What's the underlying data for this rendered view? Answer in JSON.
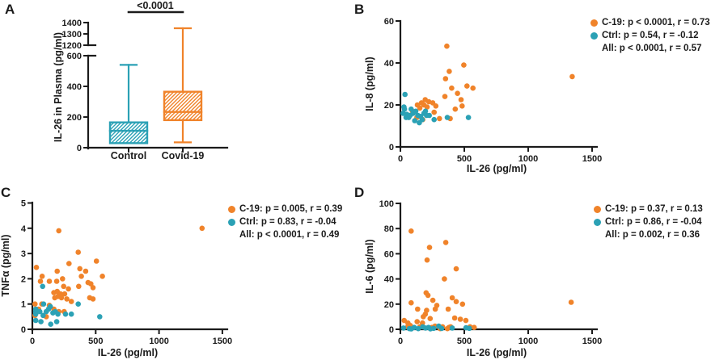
{
  "figure": {
    "background": "#FFFFFF",
    "colors": {
      "covid": "#F0832A",
      "control": "#2BA1B5",
      "axis": "#1B1B1B"
    }
  },
  "chart_data": [
    {
      "panel": "A",
      "type": "box",
      "ylabel": "IL-26 in Plasma (pg/ml)",
      "significance": "<0.0001",
      "categories": [
        "Control",
        "Covid-19"
      ],
      "axis_break": {
        "lower_range": [
          0,
          600
        ],
        "lower_ticks": [
          0,
          200,
          400,
          600
        ],
        "upper_range": [
          1200,
          1400
        ],
        "upper_ticks": [
          1200,
          1300,
          1400
        ]
      },
      "boxes": [
        {
          "name": "Control",
          "color_key": "control",
          "min": 30,
          "q1": 30,
          "median": 110,
          "q3": 165,
          "max": 540
        },
        {
          "name": "Covid-19",
          "color_key": "covid",
          "min": 35,
          "q1": 180,
          "median": 233,
          "q3": 365,
          "max": 1350
        }
      ]
    },
    {
      "panel": "B",
      "type": "scatter",
      "xlabel": "IL-26 (pg/ml)",
      "ylabel": "IL-8 (pg/ml)",
      "xlim": [
        0,
        1500
      ],
      "xticks": [
        0,
        500,
        1000,
        1500
      ],
      "ylim": [
        0,
        60
      ],
      "yticks": [
        0,
        20,
        40,
        60
      ],
      "legend": [
        {
          "color_key": "covid",
          "label": "C-19: p < 0.0001, r = 0.73"
        },
        {
          "color_key": "control",
          "label": "Ctrl: p = 0.54, r = -0.12"
        },
        {
          "color_key": null,
          "label": "All: p < 0.0001, r = 0.57"
        }
      ],
      "series": [
        {
          "name": "C-19",
          "color_key": "covid",
          "points": [
            [
              363,
              48
            ],
            [
              496,
              39
            ],
            [
              382,
              36
            ],
            [
              353,
              32.5
            ],
            [
              521,
              29
            ],
            [
              568,
              28
            ],
            [
              401,
              28
            ],
            [
              447,
              25.5
            ],
            [
              348,
              24
            ],
            [
              475,
              22.5
            ],
            [
              194,
              22.5
            ],
            [
              222,
              21.5
            ],
            [
              165,
              21
            ],
            [
              253,
              21
            ],
            [
              133,
              20
            ],
            [
              184,
              20
            ],
            [
              277,
              19.5
            ],
            [
              483,
              19.5
            ],
            [
              209,
              19
            ],
            [
              152,
              18.5
            ],
            [
              429,
              18
            ],
            [
              95,
              17
            ],
            [
              264,
              16.5
            ],
            [
              70,
              15
            ],
            [
              129,
              14
            ],
            [
              390,
              13.5
            ],
            [
              306,
              13.5
            ],
            [
              175,
              13
            ],
            [
              1344,
              33.5
            ]
          ]
        },
        {
          "name": "Ctrl",
          "color_key": "control",
          "points": [
            [
              36,
              25
            ],
            [
              28,
              19
            ],
            [
              21,
              16
            ],
            [
              32,
              18
            ],
            [
              44,
              14
            ],
            [
              65,
              14
            ],
            [
              84,
              18
            ],
            [
              99,
              16
            ],
            [
              120,
              17
            ],
            [
              137,
              15
            ],
            [
              158,
              14.5
            ],
            [
              171,
              13
            ],
            [
              184,
              16
            ],
            [
              196,
              17
            ],
            [
              205,
              15
            ],
            [
              226,
              15
            ],
            [
              112,
              12.5
            ],
            [
              148,
              11.5
            ],
            [
              264,
              13
            ],
            [
              367,
              14
            ],
            [
              532,
              14
            ],
            [
              50,
              15.5
            ],
            [
              75,
              15
            ]
          ]
        }
      ]
    },
    {
      "panel": "C",
      "type": "scatter",
      "xlabel": "IL-26 (pg/ml)",
      "ylabel": "TNFα (pg/ml)",
      "xlim": [
        0,
        1500
      ],
      "xticks": [
        0,
        500,
        1000,
        1500
      ],
      "ylim": [
        0,
        5
      ],
      "yticks": [
        0,
        1,
        2,
        3,
        4,
        5
      ],
      "legend": [
        {
          "color_key": "covid",
          "label": "C-19: p = 0.005, r = 0.39"
        },
        {
          "color_key": "control",
          "label": "Ctrl: p = 0.83, r = -0.04"
        },
        {
          "color_key": null,
          "label": "All: p < 0.0001, r = 0.49"
        }
      ],
      "series": [
        {
          "name": "C-19",
          "color_key": "covid",
          "points": [
            [
              209,
              3.9
            ],
            [
              362,
              3.05
            ],
            [
              506,
              2.7
            ],
            [
              289,
              2.6
            ],
            [
              32,
              2.45
            ],
            [
              375,
              2.4
            ],
            [
              421,
              2.3
            ],
            [
              196,
              2.3
            ],
            [
              553,
              2.1
            ],
            [
              77,
              2.1
            ],
            [
              387,
              2.1
            ],
            [
              238,
              2.0
            ],
            [
              64,
              1.9
            ],
            [
              134,
              1.9
            ],
            [
              192,
              1.9
            ],
            [
              440,
              1.85
            ],
            [
              462,
              1.8
            ],
            [
              366,
              1.7
            ],
            [
              247,
              1.7
            ],
            [
              479,
              1.65
            ],
            [
              285,
              1.6
            ],
            [
              196,
              1.5
            ],
            [
              170,
              1.45
            ],
            [
              223,
              1.4
            ],
            [
              255,
              1.4
            ],
            [
              202,
              1.3
            ],
            [
              177,
              1.25
            ],
            [
              230,
              1.25
            ],
            [
              453,
              1.25
            ],
            [
              272,
              1.2
            ],
            [
              479,
              1.2
            ],
            [
              308,
              1.1
            ],
            [
              21,
              1.0
            ],
            [
              75,
              1.0
            ],
            [
              134,
              0.95
            ],
            [
              49,
              0.8
            ],
            [
              170,
              0.8
            ],
            [
              209,
              0.7
            ],
            [
              251,
              0.7
            ],
            [
              21,
              0.55
            ],
            [
              110,
              0.5
            ],
            [
              1340,
              4.0
            ]
          ]
        },
        {
          "name": "Ctrl",
          "color_key": "control",
          "points": [
            [
              81,
              1.7
            ],
            [
              89,
              1.0
            ],
            [
              142,
              0.9
            ],
            [
              27,
              0.8
            ],
            [
              27,
              0.7
            ],
            [
              27,
              0.6
            ],
            [
              59,
              0.7
            ],
            [
              110,
              0.7
            ],
            [
              128,
              0.8
            ],
            [
              162,
              0.65
            ],
            [
              181,
              0.7
            ],
            [
              202,
              0.6
            ],
            [
              85,
              0.55
            ],
            [
              262,
              0.6
            ],
            [
              308,
              0.6
            ],
            [
              362,
              1.0
            ],
            [
              532,
              0.5
            ],
            [
              68,
              0.3
            ],
            [
              145,
              0.2
            ],
            [
              192,
              0.3
            ],
            [
              27,
              0.35
            ]
          ]
        }
      ]
    },
    {
      "panel": "D",
      "type": "scatter",
      "xlabel": "IL-26 (pg/ml)",
      "ylabel": "IL-6 (pg/ml)",
      "xlim": [
        0,
        1500
      ],
      "xticks": [
        0,
        500,
        1000,
        1500
      ],
      "ylim": [
        0,
        100
      ],
      "yticks": [
        0,
        20,
        40,
        60,
        80,
        100
      ],
      "legend": [
        {
          "color_key": "covid",
          "label": "C-19: p = 0.37, r = 0.13"
        },
        {
          "color_key": "control",
          "label": "Ctrl: p = 0.86, r = -0.04"
        },
        {
          "color_key": null,
          "label": "All: p = 0.002, r = 0.36"
        }
      ],
      "series": [
        {
          "name": "C-19",
          "color_key": "covid",
          "points": [
            [
              84,
              78
            ],
            [
              355,
              69
            ],
            [
              228,
              65
            ],
            [
              209,
              55
            ],
            [
              437,
              48
            ],
            [
              344,
              40
            ],
            [
              201,
              29
            ],
            [
              216,
              27
            ],
            [
              406,
              25
            ],
            [
              254,
              23
            ],
            [
              437,
              22
            ],
            [
              84,
              21
            ],
            [
              486,
              20
            ],
            [
              285,
              19
            ],
            [
              135,
              16
            ],
            [
              273,
              16
            ],
            [
              205,
              15
            ],
            [
              374,
              16
            ],
            [
              195,
              12
            ],
            [
              179,
              10
            ],
            [
              233,
              8.5
            ],
            [
              469,
              8
            ],
            [
              512,
              7
            ],
            [
              425,
              9
            ],
            [
              30,
              7
            ],
            [
              59,
              5
            ],
            [
              131,
              6
            ],
            [
              173,
              5
            ],
            [
              78,
              3
            ],
            [
              271,
              2.5
            ],
            [
              380,
              1.5
            ],
            [
              368,
              0.5
            ],
            [
              311,
              0.5
            ],
            [
              57,
              2
            ],
            [
              152,
              2
            ],
            [
              247,
              1.5
            ],
            [
              330,
              2
            ],
            [
              393,
              2
            ],
            [
              545,
              2
            ],
            [
              577,
              1.5
            ],
            [
              1336,
              21.5
            ]
          ]
        },
        {
          "name": "Ctrl",
          "color_key": "control",
          "points": [
            [
              25,
              1
            ],
            [
              70,
              0.5
            ],
            [
              85,
              0.3
            ],
            [
              108,
              1.5
            ],
            [
              140,
              0.5
            ],
            [
              175,
              2
            ],
            [
              196,
              1
            ],
            [
              220,
              1.5
            ],
            [
              235,
              0.4
            ],
            [
              260,
              0.8
            ],
            [
              300,
              2.5
            ],
            [
              323,
              0.7
            ],
            [
              406,
              1
            ],
            [
              513,
              1.2
            ],
            [
              539,
              0.8
            ]
          ]
        }
      ]
    }
  ]
}
